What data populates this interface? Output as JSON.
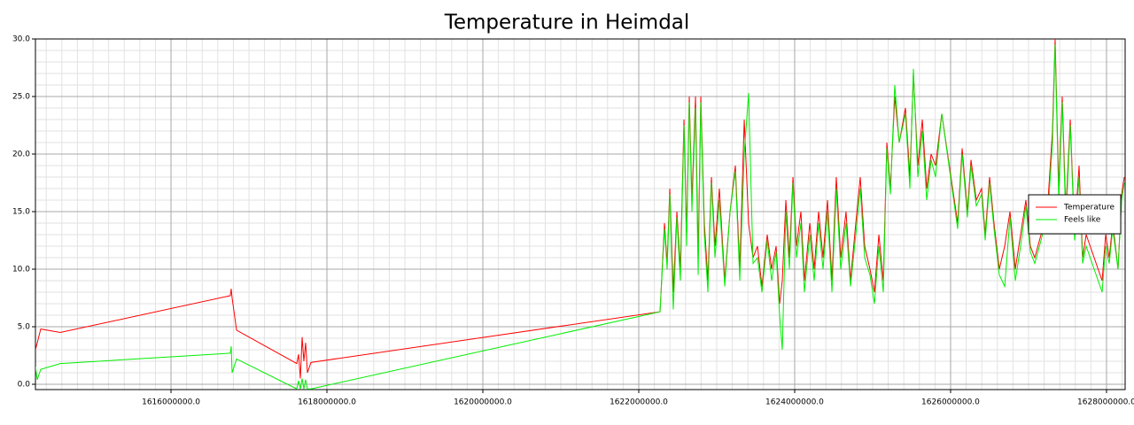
{
  "chart_data": {
    "type": "line",
    "title": "Temperature in Heimdal",
    "x": [
      1614261000,
      1614284000,
      1614329000,
      1614579000,
      1616761000,
      1616772000,
      1616784000,
      1616841000,
      1617613000,
      1617636000,
      1617659000,
      1617682000,
      1617704000,
      1617727000,
      1617750000,
      1617795000,
      1622273000,
      1622330000,
      1622364000,
      1622398000,
      1622443000,
      1622489000,
      1622534000,
      1622580000,
      1622614000,
      1622648000,
      1622682000,
      1622728000,
      1622762000,
      1622796000,
      1622841000,
      1622887000,
      1622932000,
      1622978000,
      1623034000,
      1623103000,
      1623171000,
      1623239000,
      1623296000,
      1623353000,
      1623409000,
      1623466000,
      1623523000,
      1623580000,
      1623648000,
      1623705000,
      1623762000,
      1623807000,
      1623841000,
      1623887000,
      1623932000,
      1623978000,
      1624023000,
      1624080000,
      1624125000,
      1624194000,
      1624250000,
      1624307000,
      1624364000,
      1624421000,
      1624478000,
      1624534000,
      1624591000,
      1624659000,
      1624716000,
      1624784000,
      1624841000,
      1624898000,
      1624966000,
      1625023000,
      1625080000,
      1625137000,
      1625182000,
      1625228000,
      1625284000,
      1625341000,
      1625421000,
      1625478000,
      1625523000,
      1625580000,
      1625637000,
      1625694000,
      1625750000,
      1625807000,
      1625887000,
      1626091000,
      1626148000,
      1626216000,
      1626262000,
      1626330000,
      1626398000,
      1626444000,
      1626500000,
      1626557000,
      1626625000,
      1626694000,
      1626762000,
      1626830000,
      1626898000,
      1626966000,
      1627023000,
      1627080000,
      1627160000,
      1627250000,
      1627307000,
      1627341000,
      1627387000,
      1627432000,
      1627478000,
      1627535000,
      1627591000,
      1627648000,
      1627694000,
      1627739000,
      1627944000,
      1627989000,
      1628035000,
      1628080000,
      1628148000,
      1628194000,
      1628228000
    ],
    "series": [
      {
        "name": "Temperature",
        "color": "#ff0000",
        "values": [
          3.0,
          3.6,
          4.8,
          4.5,
          7.7,
          8.3,
          7.5,
          4.7,
          1.8,
          2.6,
          0.5,
          4.1,
          2.0,
          3.6,
          1.0,
          1.9,
          6.3,
          14.0,
          10.5,
          17.0,
          8.0,
          15.0,
          10.0,
          23.0,
          13.0,
          25.0,
          16.0,
          25.0,
          11.0,
          25.0,
          14.0,
          9.0,
          18.0,
          12.0,
          17.0,
          9.0,
          15.0,
          19.0,
          10.0,
          23.0,
          14.0,
          11.0,
          12.0,
          8.5,
          13.0,
          10.0,
          12.0,
          7.0,
          9.0,
          16.0,
          11.0,
          18.0,
          12.0,
          15.0,
          9.0,
          14.0,
          10.0,
          15.0,
          11.0,
          16.0,
          9.0,
          18.0,
          11.0,
          15.0,
          9.0,
          14.0,
          18.0,
          12.0,
          10.0,
          8.0,
          13.0,
          9.0,
          21.0,
          17.0,
          25.0,
          21.0,
          24.0,
          18.0,
          27.0,
          19.0,
          23.0,
          17.0,
          20.0,
          19.0,
          23.5,
          14.0,
          20.5,
          15.0,
          19.5,
          16.0,
          17.0,
          13.0,
          18.0,
          14.0,
          10.0,
          12.0,
          15.0,
          10.0,
          13.0,
          16.0,
          12.0,
          11.0,
          13.0,
          16.0,
          22.0,
          30.0,
          17.0,
          25.0,
          15.0,
          23.0,
          13.0,
          19.0,
          11.0,
          13.0,
          9.0,
          13.0,
          11.0,
          14.0,
          10.0,
          16.5,
          18.0
        ]
      },
      {
        "name": "Feels like",
        "color": "#00ee00",
        "values": [
          1.5,
          0.4,
          1.3,
          1.8,
          2.7,
          3.3,
          1.0,
          2.2,
          -0.4,
          0.3,
          -0.4,
          0.5,
          -0.4,
          0.4,
          -0.4,
          -0.4,
          6.3,
          13.5,
          10.0,
          16.5,
          6.5,
          14.5,
          9.0,
          22.5,
          12.0,
          24.5,
          15.0,
          24.0,
          9.5,
          24.5,
          13.0,
          8.0,
          17.5,
          11.0,
          16.0,
          8.5,
          15.0,
          18.5,
          9.0,
          20.0,
          25.3,
          10.5,
          11.0,
          8.0,
          12.5,
          9.0,
          11.5,
          6.0,
          3.0,
          15.0,
          10.0,
          17.5,
          11.0,
          14.0,
          8.0,
          13.0,
          9.0,
          14.0,
          10.0,
          15.0,
          8.0,
          17.0,
          10.0,
          14.0,
          8.5,
          13.0,
          17.0,
          11.0,
          9.5,
          7.0,
          12.0,
          8.0,
          20.5,
          16.5,
          26.0,
          21.0,
          23.5,
          17.0,
          27.4,
          18.0,
          22.0,
          16.0,
          19.5,
          18.0,
          23.5,
          13.5,
          20.0,
          14.5,
          19.0,
          15.5,
          16.5,
          12.5,
          17.5,
          13.5,
          9.5,
          8.5,
          14.5,
          9.0,
          12.0,
          15.5,
          11.5,
          10.5,
          12.5,
          15.0,
          21.0,
          29.5,
          16.0,
          24.5,
          14.0,
          22.5,
          12.5,
          18.0,
          10.5,
          12.0,
          8.0,
          12.0,
          10.5,
          13.5,
          10.0,
          16.0,
          17.5
        ]
      }
    ],
    "xlim": [
      1614261000,
      1628239000
    ],
    "xticks": [
      {
        "value": 1616000000,
        "label": "1616000000.0"
      },
      {
        "value": 1618000000,
        "label": "1618000000.0"
      },
      {
        "value": 1620000000,
        "label": "1620000000.0"
      },
      {
        "value": 1622000000,
        "label": "1622000000.0"
      },
      {
        "value": 1624000000,
        "label": "1624000000.0"
      },
      {
        "value": 1626000000,
        "label": "1626000000.0"
      },
      {
        "value": 1628000000,
        "label": "1628000000.0"
      }
    ],
    "ylim": [
      -0.46,
      30
    ],
    "yticks": [
      {
        "value": 0,
        "label": "0.0"
      },
      {
        "value": 5,
        "label": "5.0"
      },
      {
        "value": 10,
        "label": "10.0"
      },
      {
        "value": 15,
        "label": "15.0"
      },
      {
        "value": 20,
        "label": "20.0"
      },
      {
        "value": 25,
        "label": "25.0"
      },
      {
        "value": 30,
        "label": "30.0"
      }
    ],
    "grid": true,
    "minor_grid": true,
    "xminor_step": 200000,
    "yminor_step": 1,
    "legend": "center right"
  }
}
